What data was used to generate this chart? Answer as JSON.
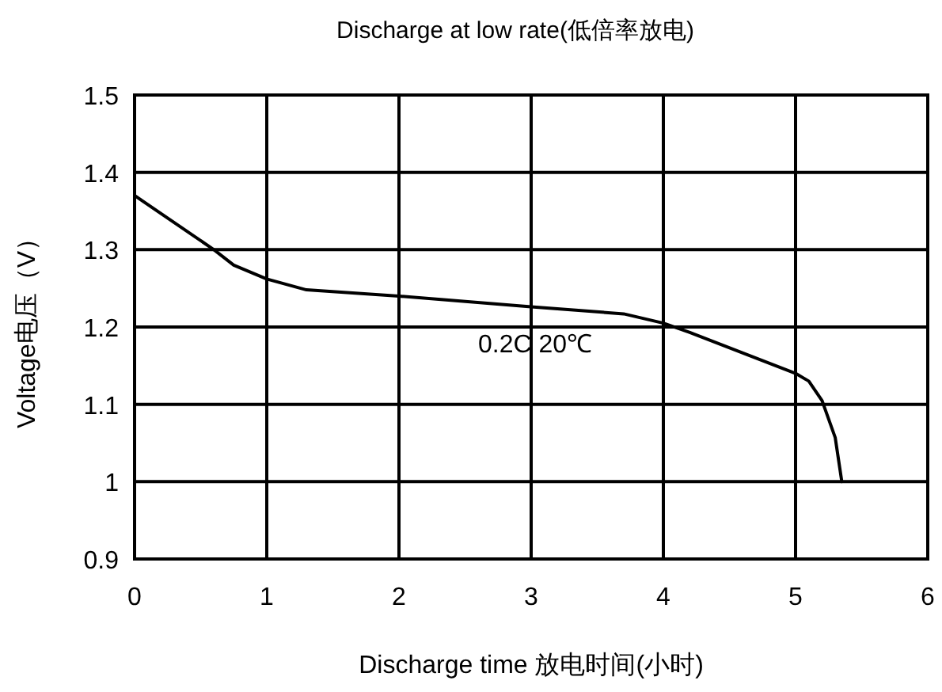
{
  "chart_data": {
    "type": "line",
    "title": "Discharge at low rate(低倍率放电)",
    "xlabel": "Discharge time 放电时间(小时)",
    "ylabel": "Voltage电压（V）",
    "x": [
      0,
      0.6,
      0.75,
      1,
      1.3,
      2,
      3,
      3.7,
      4,
      4.2,
      5,
      5.1,
      5.2,
      5.3,
      5.35
    ],
    "series": [
      {
        "color": "#000000",
        "values": [
          1.37,
          1.3,
          1.28,
          1.262,
          1.248,
          1.24,
          1.226,
          1.217,
          1.205,
          1.193,
          1.14,
          1.13,
          1.105,
          1.057,
          1.0
        ]
      }
    ],
    "annotations": [
      "0.2C 20℃"
    ],
    "xlim": [
      0,
      6
    ],
    "ylim": [
      0.9,
      1.5
    ],
    "xticks": [
      0,
      1,
      2,
      3,
      4,
      5,
      6
    ],
    "yticks": [
      0.9,
      1,
      1.1,
      1.2,
      1.3,
      1.4,
      1.5
    ],
    "grid": true,
    "marker": "none",
    "line_style": "solid"
  }
}
